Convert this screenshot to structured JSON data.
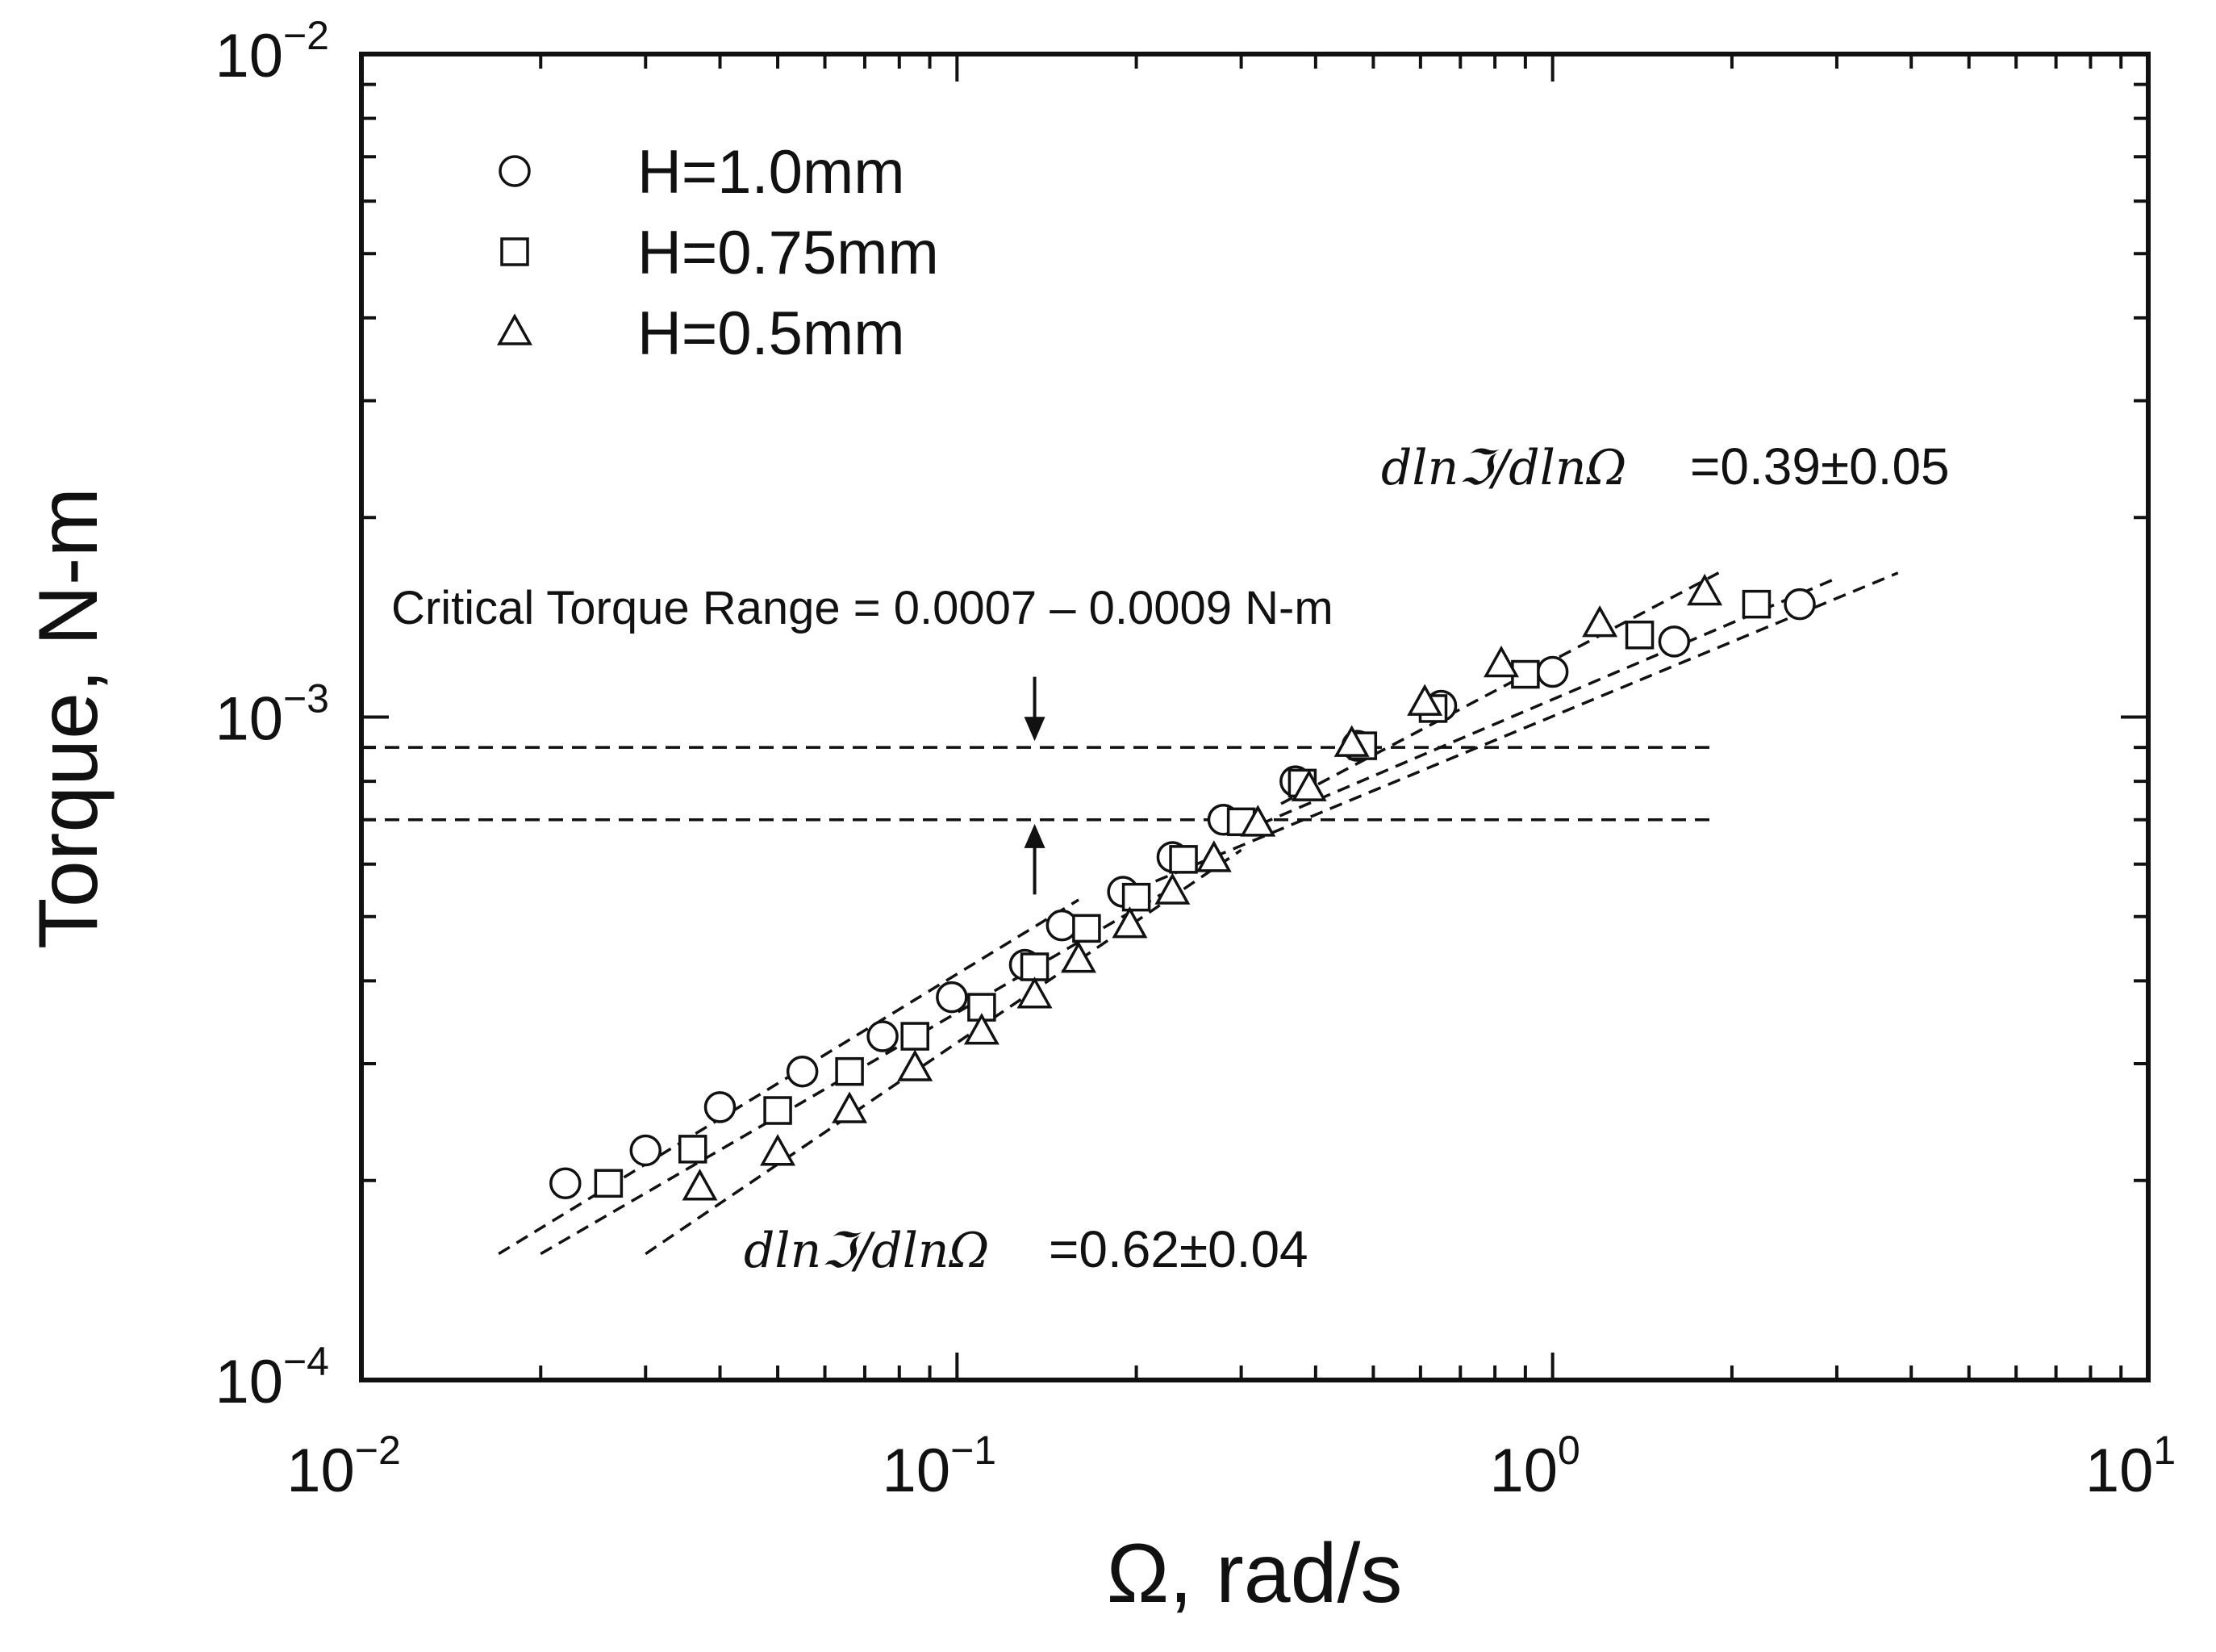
{
  "chart_data": {
    "type": "scatter",
    "xscale": "log",
    "yscale": "log",
    "xlim": [
      0.01,
      10
    ],
    "ylim": [
      0.0001,
      0.01
    ],
    "xlabel": "Ω, rad/s",
    "ylabel": "Torque, N-m",
    "x_ticks": [
      {
        "base": "10",
        "exp": "−2",
        "value": 0.01
      },
      {
        "base": "10",
        "exp": "−1",
        "value": 0.1
      },
      {
        "base": "10",
        "exp": "0",
        "value": 1
      },
      {
        "base": "10",
        "exp": "1",
        "value": 10
      }
    ],
    "y_ticks": [
      {
        "base": "10",
        "exp": "−4",
        "value": 0.0001
      },
      {
        "base": "10",
        "exp": "−3",
        "value": 0.001
      },
      {
        "base": "10",
        "exp": "−2",
        "value": 0.01
      }
    ],
    "legend_position": "top-left",
    "series": [
      {
        "name": "H=1.0mm",
        "marker": "circle",
        "points": [
          [
            0.022,
            0.000198
          ],
          [
            0.03,
            0.000222
          ],
          [
            0.04,
            0.000258
          ],
          [
            0.055,
            0.000292
          ],
          [
            0.075,
            0.00033
          ],
          [
            0.098,
            0.000378
          ],
          [
            0.13,
            0.000423
          ],
          [
            0.15,
            0.000485
          ],
          [
            0.19,
            0.000545
          ],
          [
            0.23,
            0.000615
          ],
          [
            0.28,
            0.0007
          ],
          [
            0.37,
            0.0008
          ],
          [
            0.47,
            0.000905
          ],
          [
            0.65,
            0.00104
          ],
          [
            1.0,
            0.00117
          ],
          [
            1.6,
            0.0013
          ],
          [
            2.6,
            0.00148
          ]
        ]
      },
      {
        "name": "H=0.75mm",
        "marker": "square",
        "points": [
          [
            0.026,
            0.000198
          ],
          [
            0.036,
            0.000223
          ],
          [
            0.05,
            0.000255
          ],
          [
            0.066,
            0.000292
          ],
          [
            0.085,
            0.00033
          ],
          [
            0.11,
            0.000365
          ],
          [
            0.135,
            0.00042
          ],
          [
            0.165,
            0.00048
          ],
          [
            0.2,
            0.000535
          ],
          [
            0.24,
            0.00061
          ],
          [
            0.3,
            0.000695
          ],
          [
            0.38,
            0.000795
          ],
          [
            0.48,
            0.000905
          ],
          [
            0.63,
            0.00103
          ],
          [
            0.9,
            0.00116
          ],
          [
            1.4,
            0.00133
          ],
          [
            2.2,
            0.00148
          ]
        ]
      },
      {
        "name": "H=0.5mm",
        "marker": "triangle",
        "points": [
          [
            0.037,
            0.000195
          ],
          [
            0.05,
            0.00022
          ],
          [
            0.066,
            0.000255
          ],
          [
            0.085,
            0.000295
          ],
          [
            0.11,
            0.000335
          ],
          [
            0.135,
            0.00038
          ],
          [
            0.16,
            0.00043
          ],
          [
            0.195,
            0.000485
          ],
          [
            0.23,
            0.000545
          ],
          [
            0.27,
            0.00061
          ],
          [
            0.32,
            0.00069
          ],
          [
            0.39,
            0.00078
          ],
          [
            0.46,
            0.00091
          ],
          [
            0.61,
            0.00105
          ],
          [
            0.82,
            0.0012
          ],
          [
            1.2,
            0.00138
          ],
          [
            1.8,
            0.00154
          ]
        ]
      }
    ],
    "fit_lines": [
      {
        "from": [
          0.017,
          0.000155
        ],
        "to": [
          0.16,
          0.00053
        ]
      },
      {
        "from": [
          0.02,
          0.000155
        ],
        "to": [
          0.22,
          0.00054
        ]
      },
      {
        "from": [
          0.03,
          0.000155
        ],
        "to": [
          0.3,
          0.00063
        ]
      },
      {
        "from": [
          0.2,
          0.00055
        ],
        "to": [
          3.8,
          0.00165
        ]
      },
      {
        "from": [
          0.3,
          0.00067
        ],
        "to": [
          3.0,
          0.00162
        ]
      },
      {
        "from": [
          0.35,
          0.00074
        ],
        "to": [
          1.9,
          0.00165
        ]
      }
    ],
    "critical_lines": [
      {
        "y": 0.0009,
        "x_from": 0.01,
        "x_to": 1.85
      },
      {
        "y": 0.0007,
        "x_from": 0.01,
        "x_to": 1.85
      }
    ],
    "critical_arrows": [
      {
        "x": 0.135,
        "from": 0.00115,
        "to": 0.00092
      },
      {
        "x": 0.135,
        "from": 0.00054,
        "to": 0.00069
      }
    ],
    "annotations": {
      "critical_range": "Critical Torque Range = 0.0007 – 0.0009 N-m",
      "slope_high_math": "dlnℑ/dlnΩ",
      "slope_high_value": "=0.39±0.05",
      "slope_low_math": "dlnℑ/dlnΩ",
      "slope_low_value": "=0.62±0.04"
    }
  }
}
